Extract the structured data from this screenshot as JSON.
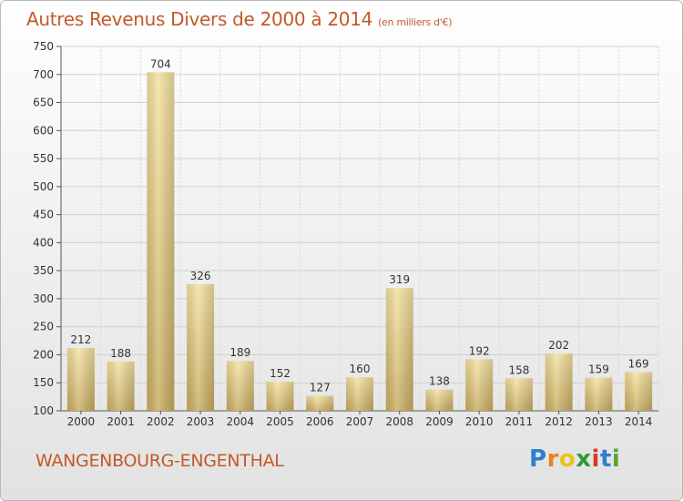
{
  "chart_data": {
    "type": "bar",
    "title": "Autres Revenus Divers de 2000 à 2014",
    "subtitle": "(en milliers d'€)",
    "categories": [
      "2000",
      "2001",
      "2002",
      "2003",
      "2004",
      "2005",
      "2006",
      "2007",
      "2008",
      "2009",
      "2010",
      "2011",
      "2012",
      "2013",
      "2014"
    ],
    "values": [
      212,
      188,
      704,
      326,
      189,
      152,
      127,
      160,
      319,
      138,
      192,
      158,
      202,
      159,
      169
    ],
    "ylim": [
      100,
      750
    ],
    "yticks": [
      100,
      150,
      200,
      250,
      300,
      350,
      400,
      450,
      500,
      550,
      600,
      650,
      700,
      750
    ],
    "grid": true,
    "bar_color": "#d9bf72"
  },
  "footer": {
    "commune": "WANGENBOURG-ENGENTHAL",
    "logo": [
      "P",
      "r",
      "o",
      "x",
      "i",
      "t",
      "i"
    ]
  }
}
